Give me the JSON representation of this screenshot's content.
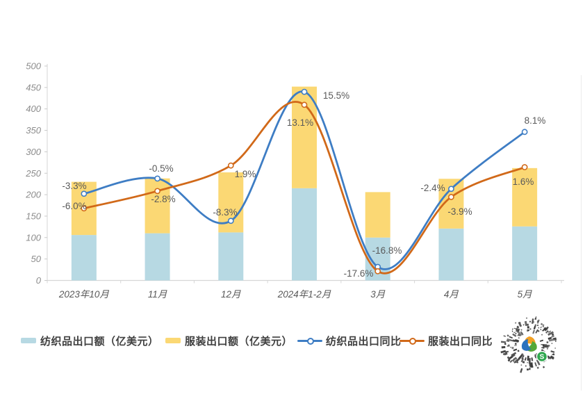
{
  "chart_data": {
    "type": "combo",
    "title": "",
    "categories": [
      "2023年10月",
      "11月",
      "12月",
      "2024年1-2月",
      "3月",
      "4月",
      "5月"
    ],
    "bar_series": [
      {
        "name": "纺织品出口额（亿美元）",
        "color": "#B7D9E3",
        "stack": "total",
        "values": [
          106,
          110,
          112,
          215,
          100,
          121,
          126
        ]
      },
      {
        "name": "服装出口额（亿美元）",
        "color": "#FBD874",
        "stack": "total",
        "values": [
          124,
          128,
          140,
          237,
          106,
          116,
          136
        ]
      }
    ],
    "line_series": [
      {
        "name": "纺织品出口同比",
        "color": "#3E7DC4",
        "axis": "secondary",
        "values": [
          -3.3,
          -0.5,
          -8.3,
          15.5,
          -16.8,
          -2.4,
          8.1
        ],
        "labels": [
          "-3.3%",
          "-0.5%",
          "-8.3%",
          "15.5%",
          "-16.8%",
          "-2.4%",
          "8.1%"
        ]
      },
      {
        "name": "服装出口同比",
        "color": "#D16919",
        "axis": "secondary",
        "values": [
          -6.0,
          -2.8,
          1.9,
          13.1,
          -17.6,
          -3.9,
          1.6
        ],
        "labels": [
          "-6.0%",
          "-2.8%",
          "1.9%",
          "13.1%",
          "-17.6%",
          "-3.9%",
          "1.6%"
        ]
      }
    ],
    "y_axis": {
      "min": 0,
      "max": 500,
      "step": 50,
      "ticks": [
        "0",
        "50",
        "100",
        "150",
        "200",
        "250",
        "300",
        "350",
        "400",
        "450",
        "500"
      ]
    },
    "y2_axis": {
      "min": -20,
      "max": 20,
      "visible": false
    },
    "grid": false,
    "legend_position": "bottom",
    "label_color": "#595959",
    "axis_label_color": "#8C8C8C",
    "x_label_color": "#595959"
  },
  "legend": {
    "items": [
      {
        "type": "bar",
        "label": "纺织品出口额（亿美元）",
        "color": "#B7D9E3"
      },
      {
        "type": "bar",
        "label": "服装出口额（亿美元）",
        "color": "#FBD874"
      },
      {
        "type": "line",
        "label": "纺织品出口同比",
        "color": "#3E7DC4"
      },
      {
        "type": "line",
        "label": "服装出口同比",
        "color": "#D16919"
      }
    ]
  },
  "qr_widget": {
    "badge_letter": "S",
    "badge_color": "#2FA84F",
    "logo_colors": [
      "#F2A024",
      "#54A839",
      "#2B72BE"
    ]
  }
}
